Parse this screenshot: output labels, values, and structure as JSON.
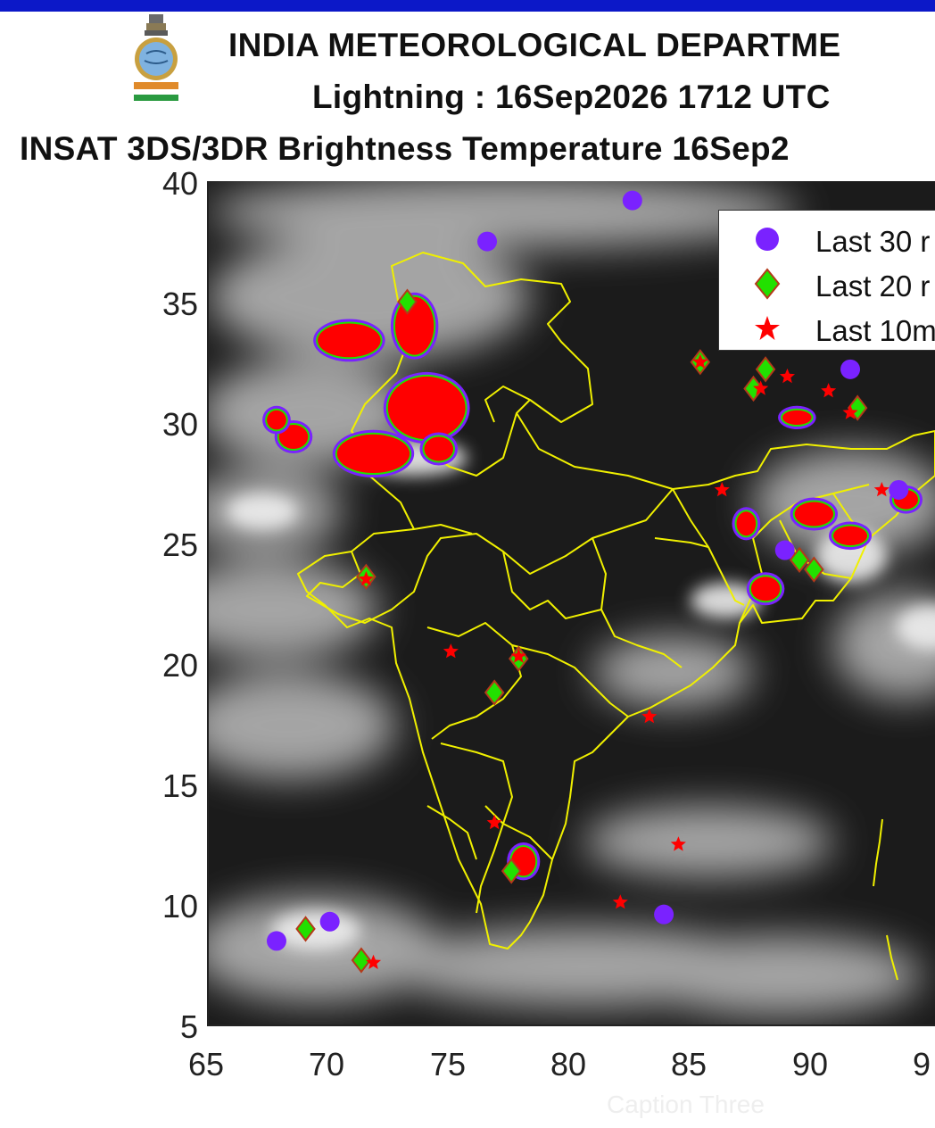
{
  "header": {
    "title_line1": "INDIA METEOROLOGICAL DEPARTME",
    "title_line2": "Lightning : 16Sep2026 1712 UTC",
    "title_line3": "INSAT 3DS/3DR Brightness Temperature 16Sep2"
  },
  "axes": {
    "x_ticks": [
      "65",
      "70",
      "75",
      "80",
      "85",
      "90",
      "9"
    ],
    "y_ticks": [
      "40",
      "35",
      "30",
      "25",
      "20",
      "15",
      "10",
      "5"
    ],
    "xlim": [
      65,
      95
    ],
    "ylim": [
      5,
      40
    ]
  },
  "legend": {
    "placement": "top-right",
    "items": [
      {
        "label": "Last 30 r",
        "marker": "circle",
        "color": "#7a22ff"
      },
      {
        "label": "Last 20 r",
        "marker": "diamond",
        "color": "#22e000"
      },
      {
        "label": "Last 10m",
        "marker": "star",
        "color": "#ff0000"
      }
    ]
  },
  "colors": {
    "header_bar": "#0c18c8",
    "boundary": "#f0f000",
    "last30": "#7a22ff",
    "last20": "#22e000",
    "last10": "#ff0000"
  },
  "chart_data": {
    "type": "scatter",
    "xlim": [
      65,
      95
    ],
    "ylim": [
      5,
      40
    ],
    "clusters": [
      {
        "lon": 70.8,
        "lat": 33.4,
        "rx": 1.3,
        "ry": 0.7
      },
      {
        "lon": 73.5,
        "lat": 34.0,
        "rx": 0.8,
        "ry": 1.2
      },
      {
        "lon": 74.0,
        "lat": 30.6,
        "rx": 1.6,
        "ry": 1.3
      },
      {
        "lon": 71.8,
        "lat": 28.7,
        "rx": 1.5,
        "ry": 0.8
      },
      {
        "lon": 68.5,
        "lat": 29.4,
        "rx": 0.6,
        "ry": 0.5
      },
      {
        "lon": 74.5,
        "lat": 28.9,
        "rx": 0.6,
        "ry": 0.5
      },
      {
        "lon": 67.8,
        "lat": 30.1,
        "rx": 0.4,
        "ry": 0.4
      },
      {
        "lon": 78.0,
        "lat": 11.8,
        "rx": 0.5,
        "ry": 0.6
      },
      {
        "lon": 88.0,
        "lat": 23.1,
        "rx": 0.6,
        "ry": 0.5
      },
      {
        "lon": 90.0,
        "lat": 26.2,
        "rx": 0.8,
        "ry": 0.5
      },
      {
        "lon": 91.5,
        "lat": 25.3,
        "rx": 0.7,
        "ry": 0.4
      },
      {
        "lon": 87.2,
        "lat": 25.8,
        "rx": 0.4,
        "ry": 0.5
      },
      {
        "lon": 89.3,
        "lat": 30.2,
        "rx": 0.6,
        "ry": 0.3
      },
      {
        "lon": 93.8,
        "lat": 26.8,
        "rx": 0.5,
        "ry": 0.4
      }
    ],
    "last30": [
      {
        "lon": 82.5,
        "lat": 39.2
      },
      {
        "lon": 76.5,
        "lat": 37.5
      },
      {
        "lon": 67.8,
        "lat": 8.5
      },
      {
        "lon": 70.0,
        "lat": 9.3
      },
      {
        "lon": 83.8,
        "lat": 9.6
      },
      {
        "lon": 91.5,
        "lat": 32.2
      },
      {
        "lon": 88.8,
        "lat": 24.7
      },
      {
        "lon": 93.5,
        "lat": 27.2
      }
    ],
    "last20": [
      {
        "lon": 69.0,
        "lat": 9.0
      },
      {
        "lon": 71.3,
        "lat": 7.7
      },
      {
        "lon": 71.5,
        "lat": 23.6
      },
      {
        "lon": 76.8,
        "lat": 18.8
      },
      {
        "lon": 77.8,
        "lat": 20.2
      },
      {
        "lon": 77.5,
        "lat": 11.4
      },
      {
        "lon": 85.3,
        "lat": 32.5
      },
      {
        "lon": 88.0,
        "lat": 32.2
      },
      {
        "lon": 87.5,
        "lat": 31.4
      },
      {
        "lon": 91.8,
        "lat": 30.6
      },
      {
        "lon": 89.4,
        "lat": 24.3
      },
      {
        "lon": 90.0,
        "lat": 23.9
      },
      {
        "lon": 73.2,
        "lat": 35.0
      }
    ],
    "last10": [
      {
        "lon": 75.0,
        "lat": 20.5
      },
      {
        "lon": 76.8,
        "lat": 13.4
      },
      {
        "lon": 82.0,
        "lat": 10.1
      },
      {
        "lon": 84.4,
        "lat": 12.5
      },
      {
        "lon": 83.2,
        "lat": 17.8
      },
      {
        "lon": 86.2,
        "lat": 27.2
      },
      {
        "lon": 88.9,
        "lat": 31.9
      },
      {
        "lon": 90.6,
        "lat": 31.3
      },
      {
        "lon": 71.8,
        "lat": 7.6
      },
      {
        "lon": 71.5,
        "lat": 23.5
      },
      {
        "lon": 85.3,
        "lat": 32.5
      },
      {
        "lon": 91.5,
        "lat": 30.4
      },
      {
        "lon": 77.8,
        "lat": 20.3
      },
      {
        "lon": 87.8,
        "lat": 31.4
      },
      {
        "lon": 92.8,
        "lat": 27.2
      }
    ]
  },
  "watermark": "Caption Three"
}
